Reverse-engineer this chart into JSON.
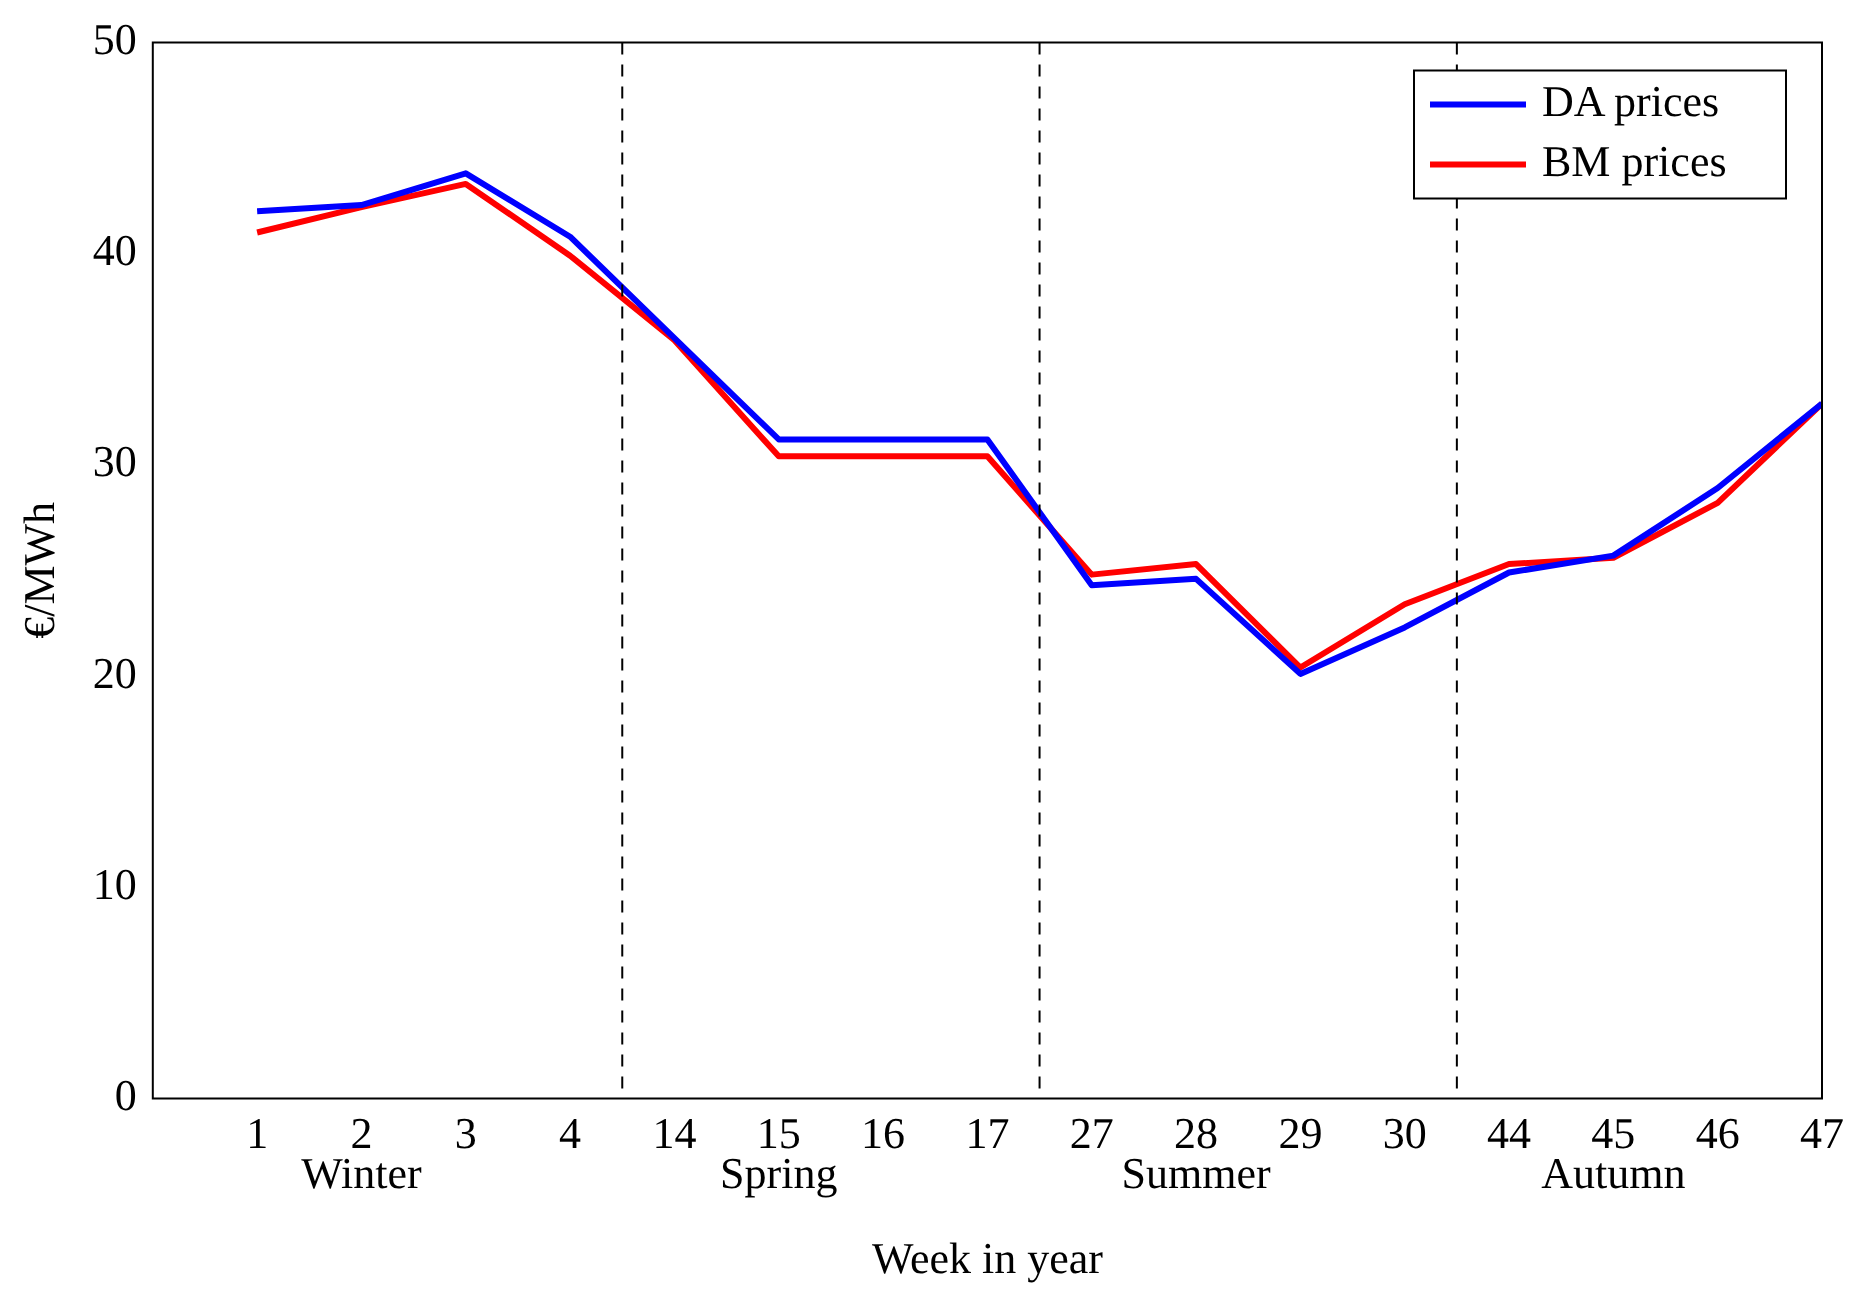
{
  "chart_data": {
    "type": "line",
    "xlabel": "Week in year",
    "ylabel": "€/MWh",
    "categories": [
      "1",
      "2",
      "3",
      "4",
      "14",
      "15",
      "16",
      "17",
      "27",
      "28",
      "29",
      "30",
      "44",
      "45",
      "46",
      "47"
    ],
    "series": [
      {
        "name": "DA prices",
        "color": "#0000ff",
        "values": [
          42.0,
          42.3,
          43.8,
          40.8,
          36.0,
          31.2,
          31.2,
          31.2,
          24.3,
          24.6,
          20.1,
          22.3,
          24.9,
          25.7,
          28.9,
          32.9
        ]
      },
      {
        "name": "BM prices",
        "color": "#ff0000",
        "values": [
          41.0,
          42.2,
          43.3,
          39.9,
          35.9,
          30.4,
          30.4,
          30.4,
          24.8,
          25.3,
          20.4,
          23.4,
          25.3,
          25.6,
          28.2,
          32.9
        ]
      }
    ],
    "ylim": [
      0,
      50
    ],
    "yticks": [
      0,
      10,
      20,
      30,
      40,
      50
    ],
    "grid": false,
    "legend": "top right",
    "marker": "none",
    "line_style": "solid",
    "annotations": [
      "Winter",
      "Spring",
      "Summer",
      "Autumn"
    ]
  }
}
